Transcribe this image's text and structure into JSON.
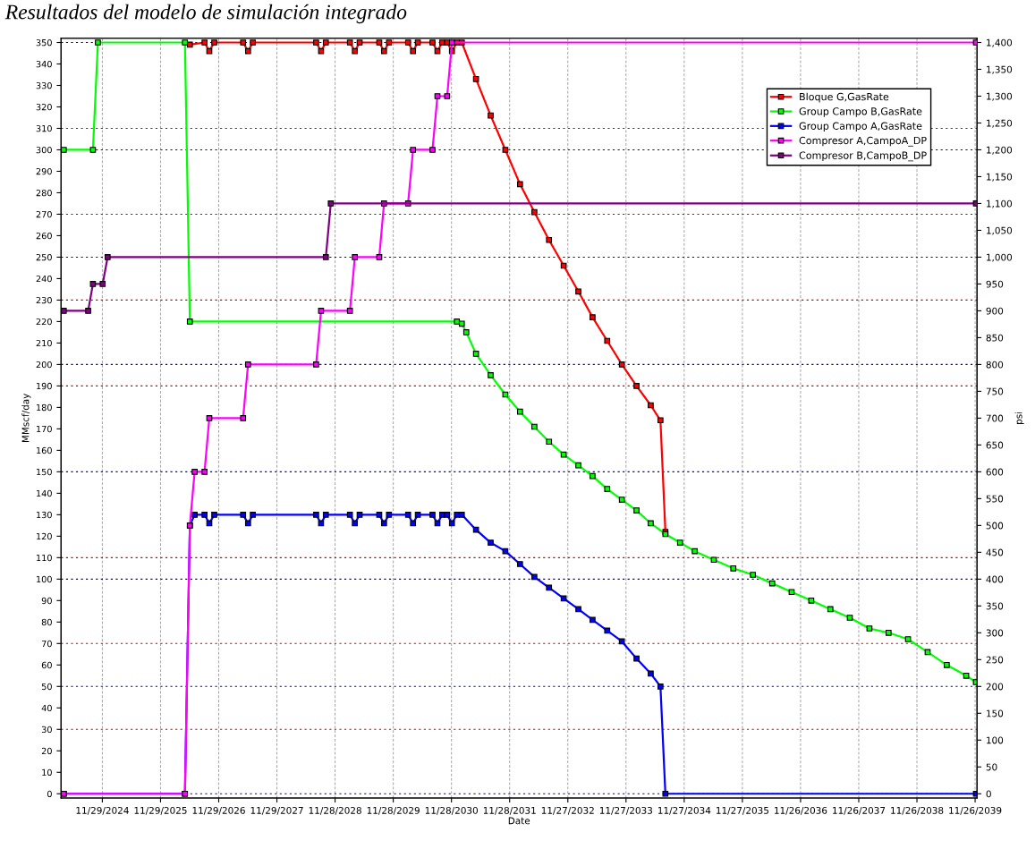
{
  "chart_data": {
    "type": "line",
    "title": "Resultados del modelo de simulación integrado",
    "xlabel": "Date",
    "ylabel": "MMscf/day",
    "y2label": "psi",
    "xlim": [
      "2024-03-15",
      "2039-12-08"
    ],
    "xticks": [
      {
        "value": "2024-11-29",
        "label": "11/29/2024"
      },
      {
        "value": "2025-11-29",
        "label": "11/29/2025"
      },
      {
        "value": "2026-11-29",
        "label": "11/29/2026"
      },
      {
        "value": "2027-11-29",
        "label": "11/29/2027"
      },
      {
        "value": "2028-11-28",
        "label": "11/28/2028"
      },
      {
        "value": "2029-11-28",
        "label": "11/28/2029"
      },
      {
        "value": "2030-11-28",
        "label": "11/28/2030"
      },
      {
        "value": "2031-11-28",
        "label": "11/28/2031"
      },
      {
        "value": "2032-11-27",
        "label": "11/27/2032"
      },
      {
        "value": "2033-11-27",
        "label": "11/27/2033"
      },
      {
        "value": "2034-11-27",
        "label": "11/27/2034"
      },
      {
        "value": "2035-11-27",
        "label": "11/27/2035"
      },
      {
        "value": "2036-11-26",
        "label": "11/26/2036"
      },
      {
        "value": "2037-11-26",
        "label": "11/26/2037"
      },
      {
        "value": "2038-11-26",
        "label": "11/26/2038"
      },
      {
        "value": "2039-11-26",
        "label": "11/26/2039"
      }
    ],
    "ylim": [
      -2,
      352
    ],
    "yticks": [
      0,
      10,
      20,
      30,
      40,
      50,
      60,
      70,
      80,
      90,
      100,
      110,
      120,
      130,
      140,
      150,
      160,
      170,
      180,
      190,
      200,
      210,
      220,
      230,
      240,
      250,
      260,
      270,
      280,
      290,
      300,
      310,
      320,
      330,
      340,
      350
    ],
    "y2lim": [
      -8,
      1408
    ],
    "y2ticks": [
      0,
      50,
      100,
      150,
      200,
      250,
      300,
      350,
      400,
      450,
      500,
      550,
      600,
      650,
      700,
      750,
      800,
      850,
      900,
      950,
      {
        "value": 1000,
        "label": "1,000"
      },
      {
        "value": 1050,
        "label": "1,050"
      },
      {
        "value": 1100,
        "label": "1,100"
      },
      {
        "value": 1150,
        "label": "1,150"
      },
      {
        "value": 1200,
        "label": "1,200"
      },
      {
        "value": 1250,
        "label": "1,250"
      },
      {
        "value": 1300,
        "label": "1,300"
      },
      {
        "value": 1350,
        "label": "1,350"
      },
      {
        "value": 1400,
        "label": "1,400"
      }
    ],
    "grid": true,
    "legend": "top right",
    "marker": "square",
    "line_style": "solid",
    "series": [
      {
        "name": "Bloque G,GasRate",
        "color": "#ff0000",
        "x": [
          "2026-06",
          "2026-09",
          "2026-10",
          "2026-11",
          "2027-05",
          "2027-06",
          "2027-07",
          "2028-08",
          "2028-09",
          "2028-10",
          "2029-03",
          "2029-04",
          "2029-05",
          "2029-09",
          "2029-10",
          "2029-11",
          "2030-03",
          "2030-04",
          "2030-05",
          "2030-08",
          "2030-09",
          "2030-10",
          "2030-11",
          "2030-12",
          "2031-01",
          "2031-02",
          "2031-05",
          "2031-08",
          "2031-11",
          "2032-02",
          "2032-05",
          "2032-08",
          "2032-11",
          "2033-02",
          "2033-05",
          "2033-08",
          "2033-11",
          "2034-02",
          "2034-05",
          "2034-07",
          "2034-08"
        ],
        "values": [
          349,
          350,
          346,
          350,
          350,
          346,
          350,
          350,
          346,
          350,
          350,
          346,
          350,
          350,
          346,
          350,
          350,
          346,
          350,
          350,
          346,
          350,
          350,
          346,
          350,
          350,
          333,
          316,
          300,
          284,
          271,
          258,
          246,
          234,
          222,
          211,
          200,
          190,
          181,
          174,
          122
        ]
      },
      {
        "name": "Group Campo B,GasRate",
        "color": "#00ff00",
        "x": [
          "2024-04",
          "2024-10",
          "2024-11",
          "2026-05",
          "2026-06",
          "2031-01",
          "2031-02",
          "2031-03",
          "2031-05",
          "2031-08",
          "2031-11",
          "2032-02",
          "2032-05",
          "2032-08",
          "2032-11",
          "2033-02",
          "2033-05",
          "2033-08",
          "2033-11",
          "2034-02",
          "2034-05",
          "2034-08",
          "2034-11",
          "2035-02",
          "2035-06",
          "2035-10",
          "2036-02",
          "2036-06",
          "2036-10",
          "2037-02",
          "2037-06",
          "2037-10",
          "2038-02",
          "2038-06",
          "2038-10",
          "2039-02",
          "2039-06",
          "2039-10",
          "2039-12"
        ],
        "values": [
          300,
          300,
          350,
          350,
          220,
          220,
          219,
          215,
          205,
          195,
          186,
          178,
          171,
          164,
          158,
          153,
          148,
          142,
          137,
          132,
          126,
          121,
          117,
          113,
          109,
          105,
          102,
          98,
          94,
          90,
          86,
          82,
          77,
          75,
          72,
          66,
          60,
          55,
          52
        ]
      },
      {
        "name": "Group Campo A,GasRate",
        "color": "#0000ff",
        "x": [
          "2024-04",
          "2026-05",
          "2026-06",
          "2026-07",
          "2026-09",
          "2026-10",
          "2026-11",
          "2027-05",
          "2027-06",
          "2027-07",
          "2028-08",
          "2028-09",
          "2028-10",
          "2029-03",
          "2029-04",
          "2029-05",
          "2029-09",
          "2029-10",
          "2029-11",
          "2030-03",
          "2030-04",
          "2030-05",
          "2030-08",
          "2030-09",
          "2030-10",
          "2030-11",
          "2030-12",
          "2031-01",
          "2031-02",
          "2031-05",
          "2031-08",
          "2031-11",
          "2032-02",
          "2032-05",
          "2032-08",
          "2032-11",
          "2033-02",
          "2033-05",
          "2033-08",
          "2033-11",
          "2034-02",
          "2034-05",
          "2034-07",
          "2034-08",
          "2039-12"
        ],
        "values": [
          0,
          0,
          125,
          130,
          130,
          126,
          130,
          130,
          126,
          130,
          130,
          126,
          130,
          130,
          126,
          130,
          130,
          126,
          130,
          130,
          126,
          130,
          130,
          126,
          130,
          130,
          126,
          130,
          130,
          123,
          117,
          113,
          107,
          101,
          96,
          91,
          86,
          81,
          76,
          71,
          63,
          56,
          50,
          0,
          0
        ]
      },
      {
        "name": "Compresor A,CampoA_DP",
        "color": "#ff00ff",
        "axis": "y2",
        "x": [
          "2024-04",
          "2026-05",
          "2026-06",
          "2026-07",
          "2026-09",
          "2026-10",
          "2027-05",
          "2027-06",
          "2028-08",
          "2028-09",
          "2029-03",
          "2029-04",
          "2029-09",
          "2029-10",
          "2030-03",
          "2030-04",
          "2030-08",
          "2030-09",
          "2030-11",
          "2030-12",
          "2039-12"
        ],
        "values": [
          0,
          0,
          500,
          600,
          600,
          700,
          700,
          800,
          800,
          900,
          900,
          1000,
          1000,
          1100,
          1100,
          1200,
          1200,
          1300,
          1300,
          1400,
          1400
        ]
      },
      {
        "name": "Compresor B,CampoB_DP",
        "color": "#800080",
        "axis": "y2",
        "x": [
          "2024-04",
          "2024-09",
          "2024-10",
          "2024-12",
          "2025-01",
          "2028-10",
          "2028-11",
          "2039-12"
        ],
        "values": [
          900,
          900,
          950,
          950,
          1000,
          1000,
          1100,
          1100
        ]
      }
    ]
  }
}
